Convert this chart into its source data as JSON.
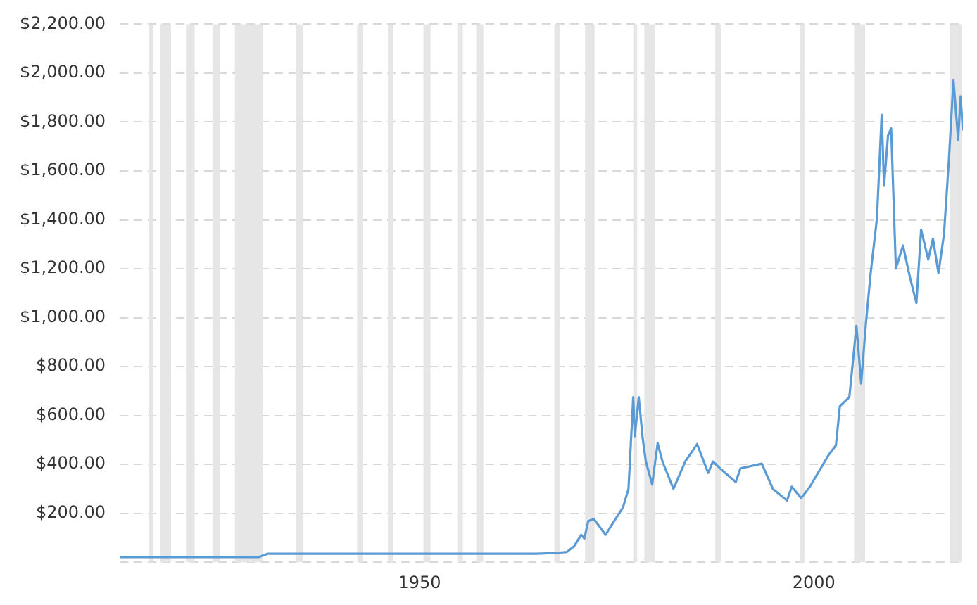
{
  "chart_data": {
    "type": "line",
    "xlim": [
      1912,
      2018.9
    ],
    "xticks": [
      1950,
      2000
    ],
    "ylim": [
      0,
      2200
    ],
    "yticks": [
      {
        "value": 0,
        "label": null
      },
      {
        "value": 200,
        "label": "$200.00"
      },
      {
        "value": 400,
        "label": "$400.00"
      },
      {
        "value": 600,
        "label": "$600.00"
      },
      {
        "value": 800,
        "label": "$800.00"
      },
      {
        "value": 1000,
        "label": "$1,000.00"
      },
      {
        "value": 1200,
        "label": "$1,200.00"
      },
      {
        "value": 1400,
        "label": "$1,400.00"
      },
      {
        "value": 1600,
        "label": "$1,600.00"
      },
      {
        "value": 1800,
        "label": "$1,800.00"
      },
      {
        "value": 2000,
        "label": "$2,000.00"
      },
      {
        "value": 2200,
        "label": "$2,200.00"
      }
    ],
    "grid": "y",
    "legend": false,
    "marker": "none",
    "line_style": "solid",
    "series": [
      {
        "color": "#5b9bd5",
        "x": [
          1912,
          1929.6,
          1930.8,
          1964.9,
          1967.3,
          1968.7,
          1969.6,
          1970.5,
          1970.9,
          1971.4,
          1972.1,
          1973.6,
          1974.3,
          1975.8,
          1976.5,
          1977.1,
          1977.3,
          1977.8,
          1978.3,
          1978.7,
          1979.5,
          1980.2,
          1980.8,
          1982.2,
          1983.7,
          1985.2,
          1986.6,
          1987.2,
          1988.4,
          1990.1,
          1990.7,
          1993.4,
          1994.8,
          1996.6,
          1997.2,
          1998.4,
          1999.5,
          2001.9,
          2002.8,
          2003.3,
          2004.5,
          2005.4,
          2006.0,
          2006.6,
          2007.2,
          2008.0,
          2008.6,
          2008.9,
          2009.4,
          2009.8,
          2010.4,
          2011.3,
          2012.2,
          2013.0,
          2013.6,
          2014.5,
          2015.1,
          2015.8,
          2016.5,
          2017.1,
          2017.7,
          2018.3,
          2018.6,
          2018.9
        ],
        "values": [
          21,
          21,
          35,
          35,
          38,
          42,
          65,
          112,
          97,
          168,
          177,
          112,
          149,
          224,
          300,
          675,
          515,
          675,
          506,
          412,
          318,
          487,
          412,
          300,
          412,
          483,
          365,
          412,
          375,
          328,
          384,
          403,
          300,
          252,
          309,
          262,
          309,
          440,
          478,
          638,
          675,
          966,
          731,
          976,
          1182,
          1407,
          1830,
          1539,
          1745,
          1774,
          1201,
          1295,
          1163,
          1060,
          1360,
          1238,
          1323,
          1182,
          1342,
          1633,
          1971,
          1727,
          1905,
          1765
        ]
      }
    ],
    "bands": [
      {
        "axis": "x",
        "from": 1915.7,
        "to": 1916.2,
        "color": "#e6e6e6"
      },
      {
        "axis": "x",
        "from": 1917.1,
        "to": 1918.5,
        "color": "#e6e6e6"
      },
      {
        "axis": "x",
        "from": 1920.4,
        "to": 1921.5,
        "color": "#e6e6e6"
      },
      {
        "axis": "x",
        "from": 1923.8,
        "to": 1924.7,
        "color": "#e6e6e6"
      },
      {
        "axis": "x",
        "from": 1926.6,
        "to": 1930.1,
        "color": "#e6e6e6"
      },
      {
        "axis": "x",
        "from": 1934.3,
        "to": 1935.2,
        "color": "#e6e6e6"
      },
      {
        "axis": "x",
        "from": 1942.1,
        "to": 1942.8,
        "color": "#e6e6e6"
      },
      {
        "axis": "x",
        "from": 1946.0,
        "to": 1946.7,
        "color": "#e6e6e6"
      },
      {
        "axis": "x",
        "from": 1950.5,
        "to": 1951.4,
        "color": "#e6e6e6"
      },
      {
        "axis": "x",
        "from": 1954.8,
        "to": 1955.5,
        "color": "#e6e6e6"
      },
      {
        "axis": "x",
        "from": 1957.2,
        "to": 1958.1,
        "color": "#e6e6e6"
      },
      {
        "axis": "x",
        "from": 1967.1,
        "to": 1967.8,
        "color": "#e6e6e6"
      },
      {
        "axis": "x",
        "from": 1971.0,
        "to": 1972.2,
        "color": "#e6e6e6"
      },
      {
        "axis": "x",
        "from": 1977.1,
        "to": 1977.6,
        "color": "#e6e6e6"
      },
      {
        "axis": "x",
        "from": 1978.5,
        "to": 1979.9,
        "color": "#e6e6e6"
      },
      {
        "axis": "x",
        "from": 1987.5,
        "to": 1988.2,
        "color": "#e6e6e6"
      },
      {
        "axis": "x",
        "from": 1998.2,
        "to": 1998.9,
        "color": "#e6e6e6"
      },
      {
        "axis": "x",
        "from": 2005.1,
        "to": 2006.5,
        "color": "#e6e6e6"
      },
      {
        "axis": "x",
        "from": 2017.3,
        "to": 2018.8,
        "color": "#e6e6e6"
      }
    ]
  }
}
